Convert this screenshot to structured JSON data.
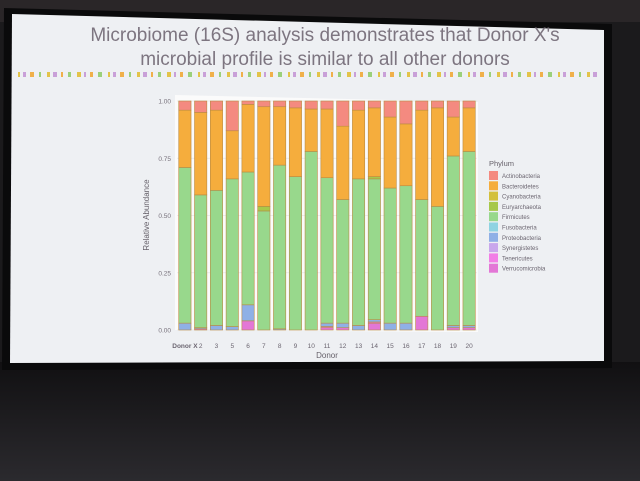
{
  "slide": {
    "title_line1": "Microbiome (16S) analysis demonstrates that Donor X's",
    "title_line2": "microbial profile is similar to all other donors",
    "accent_colors": [
      "#e3c34a",
      "#c9a0d8",
      "#f0b04a",
      "#9bd07a"
    ]
  },
  "chart_data": {
    "type": "bar",
    "stacked": true,
    "title": "",
    "xlabel": "Donor",
    "ylabel": "Relative Abundance",
    "ylim": [
      0,
      1
    ],
    "yticks": [
      "0.00",
      "0.25",
      "0.50",
      "0.75",
      "1.00"
    ],
    "grid": true,
    "legend_position": "right",
    "legend_title": "Phylum",
    "categories": [
      "Donor X",
      "2",
      "3",
      "5",
      "6",
      "7",
      "8",
      "9",
      "10",
      "11",
      "12",
      "13",
      "14",
      "15",
      "16",
      "17",
      "18",
      "19",
      "20"
    ],
    "series": [
      {
        "name": "Verrucomicrobia",
        "color": "#e377d6",
        "values": [
          0.0,
          0.005,
          0.0,
          0.0,
          0.04,
          0.0,
          0.0,
          0.0,
          0.0,
          0.01,
          0.01,
          0.0,
          0.03,
          0.0,
          0.0,
          0.06,
          0.0,
          0.01,
          0.01
        ]
      },
      {
        "name": "Tenericutes",
        "color": "#f27ee6",
        "values": [
          0.0,
          0.0,
          0.0,
          0.0,
          0.0,
          0.0,
          0.0,
          0.0,
          0.0,
          0.005,
          0.0,
          0.0,
          0.005,
          0.0,
          0.0,
          0.0,
          0.0,
          0.0,
          0.0
        ]
      },
      {
        "name": "Synergistetes",
        "color": "#c9a7ec",
        "values": [
          0.0,
          0.0,
          0.0,
          0.0,
          0.0,
          0.0,
          0.0,
          0.0,
          0.0,
          0.0,
          0.0,
          0.0,
          0.0,
          0.0,
          0.0,
          0.0,
          0.0,
          0.0,
          0.0
        ]
      },
      {
        "name": "Proteobacteria",
        "color": "#8fb0e6",
        "values": [
          0.03,
          0.005,
          0.02,
          0.015,
          0.07,
          0.0,
          0.005,
          0.0,
          0.0,
          0.015,
          0.02,
          0.02,
          0.01,
          0.03,
          0.03,
          0.0,
          0.0,
          0.01,
          0.01
        ]
      },
      {
        "name": "Fusobacteria",
        "color": "#8fd3e2",
        "values": [
          0.0,
          0.0,
          0.0,
          0.0,
          0.0,
          0.0,
          0.0,
          0.0,
          0.0,
          0.0,
          0.0,
          0.0,
          0.0,
          0.0,
          0.0,
          0.0,
          0.0,
          0.0,
          0.0
        ]
      },
      {
        "name": "Firmicutes",
        "color": "#98d88c",
        "values": [
          0.68,
          0.58,
          0.59,
          0.645,
          0.58,
          0.52,
          0.715,
          0.67,
          0.78,
          0.635,
          0.54,
          0.64,
          0.615,
          0.59,
          0.6,
          0.51,
          0.54,
          0.74,
          0.76
        ]
      },
      {
        "name": "Euryarchaeota",
        "color": "#a7c84a",
        "values": [
          0.0,
          0.0,
          0.0,
          0.0,
          0.0,
          0.02,
          0.0,
          0.0,
          0.0,
          0.0,
          0.0,
          0.0,
          0.01,
          0.0,
          0.0,
          0.0,
          0.0,
          0.0,
          0.0
        ]
      },
      {
        "name": "Cyanobacteria",
        "color": "#d3c03c",
        "values": [
          0.0,
          0.0,
          0.0,
          0.0,
          0.0,
          0.0,
          0.0,
          0.0,
          0.0,
          0.0,
          0.0,
          0.0,
          0.0,
          0.0,
          0.0,
          0.0,
          0.0,
          0.0,
          0.0
        ]
      },
      {
        "name": "Bacteroidetes",
        "color": "#f5ad3d",
        "values": [
          0.25,
          0.36,
          0.35,
          0.21,
          0.295,
          0.435,
          0.255,
          0.3,
          0.185,
          0.3,
          0.32,
          0.3,
          0.3,
          0.31,
          0.27,
          0.39,
          0.43,
          0.17,
          0.19
        ]
      },
      {
        "name": "Actinobacteria",
        "color": "#f48a80",
        "values": [
          0.04,
          0.05,
          0.04,
          0.13,
          0.015,
          0.025,
          0.025,
          0.03,
          0.035,
          0.035,
          0.11,
          0.04,
          0.03,
          0.07,
          0.1,
          0.04,
          0.03,
          0.07,
          0.03
        ]
      }
    ],
    "legend_order": [
      "Actinobacteria",
      "Bacteroidetes",
      "Cyanobacteria",
      "Euryarchaeota",
      "Firmicutes",
      "Fusobacteria",
      "Proteobacteria",
      "Synergistetes",
      "Tenericutes",
      "Verrucomicrobia"
    ]
  }
}
